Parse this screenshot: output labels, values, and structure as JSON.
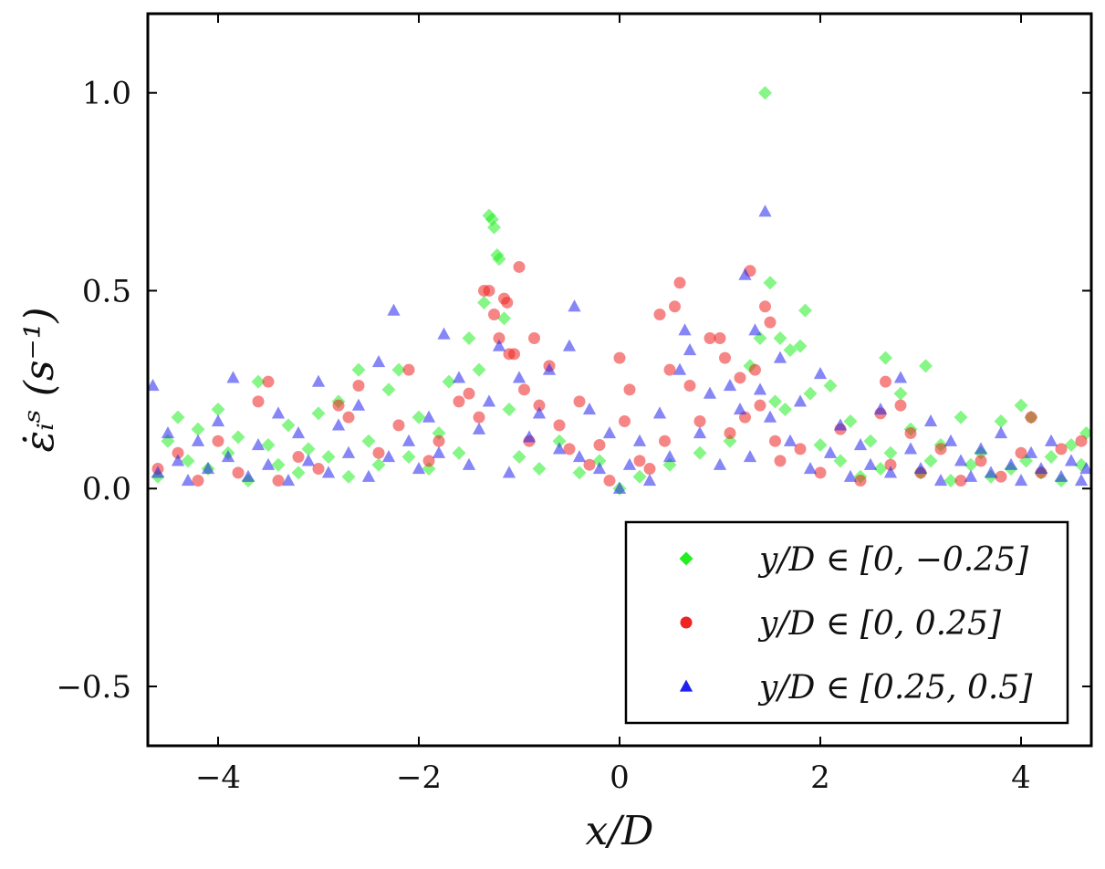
{
  "chart_data": {
    "type": "scatter",
    "title": "",
    "xlabel": "x/D",
    "ylabel": "ε̇ᵢˢ (s⁻¹)",
    "xlim": [
      -4.7,
      4.7
    ],
    "ylim": [
      -0.65,
      1.2
    ],
    "xticks": [
      -4,
      -2,
      0,
      2,
      4
    ],
    "xtick_labels": [
      "−4",
      "−2",
      "0",
      "2",
      "4"
    ],
    "yticks": [
      -0.5,
      0.0,
      0.5,
      1.0
    ],
    "ytick_labels": [
      "−0.5",
      "0.0",
      "0.5",
      "1.0"
    ],
    "grid": false,
    "legend_position": "lower-right",
    "series": [
      {
        "name": "y/D ∈ [0, −0.25]",
        "marker": "diamond",
        "color": "#22ee22",
        "points": [
          [
            -4.6,
            0.03
          ],
          [
            -4.5,
            0.12
          ],
          [
            -4.4,
            0.18
          ],
          [
            -4.3,
            0.07
          ],
          [
            -4.2,
            0.15
          ],
          [
            -4.1,
            0.05
          ],
          [
            -4.0,
            0.2
          ],
          [
            -3.9,
            0.09
          ],
          [
            -3.8,
            0.13
          ],
          [
            -3.7,
            0.02
          ],
          [
            -3.6,
            0.27
          ],
          [
            -3.5,
            0.11
          ],
          [
            -3.4,
            0.06
          ],
          [
            -3.3,
            0.16
          ],
          [
            -3.2,
            0.04
          ],
          [
            -3.1,
            0.1
          ],
          [
            -3.0,
            0.19
          ],
          [
            -2.9,
            0.08
          ],
          [
            -2.8,
            0.22
          ],
          [
            -2.7,
            0.03
          ],
          [
            -2.6,
            0.3
          ],
          [
            -2.5,
            0.12
          ],
          [
            -2.4,
            0.06
          ],
          [
            -2.3,
            0.25
          ],
          [
            -2.2,
            0.3
          ],
          [
            -2.1,
            0.08
          ],
          [
            -2.0,
            0.18
          ],
          [
            -1.9,
            0.05
          ],
          [
            -1.8,
            0.14
          ],
          [
            -1.7,
            0.27
          ],
          [
            -1.6,
            0.09
          ],
          [
            -1.5,
            0.38
          ],
          [
            -1.4,
            0.3
          ],
          [
            -1.35,
            0.47
          ],
          [
            -1.3,
            0.69
          ],
          [
            -1.27,
            0.68
          ],
          [
            -1.25,
            0.66
          ],
          [
            -1.22,
            0.59
          ],
          [
            -1.2,
            0.58
          ],
          [
            -1.15,
            0.43
          ],
          [
            -1.1,
            0.2
          ],
          [
            -1.0,
            0.08
          ],
          [
            -0.8,
            0.05
          ],
          [
            -0.6,
            0.12
          ],
          [
            -0.4,
            0.04
          ],
          [
            -0.2,
            0.07
          ],
          [
            0.0,
            0.0
          ],
          [
            0.2,
            0.03
          ],
          [
            0.5,
            0.06
          ],
          [
            0.8,
            0.09
          ],
          [
            1.1,
            0.12
          ],
          [
            1.3,
            0.31
          ],
          [
            1.4,
            0.38
          ],
          [
            1.45,
            1.0
          ],
          [
            1.5,
            0.52
          ],
          [
            1.55,
            0.22
          ],
          [
            1.6,
            0.38
          ],
          [
            1.65,
            0.2
          ],
          [
            1.7,
            0.35
          ],
          [
            1.8,
            0.36
          ],
          [
            1.85,
            0.45
          ],
          [
            1.9,
            0.24
          ],
          [
            2.0,
            0.11
          ],
          [
            2.1,
            0.26
          ],
          [
            2.2,
            0.07
          ],
          [
            2.3,
            0.17
          ],
          [
            2.4,
            0.03
          ],
          [
            2.5,
            0.12
          ],
          [
            2.6,
            0.05
          ],
          [
            2.65,
            0.33
          ],
          [
            2.7,
            0.09
          ],
          [
            2.8,
            0.24
          ],
          [
            2.9,
            0.15
          ],
          [
            3.0,
            0.04
          ],
          [
            3.05,
            0.31
          ],
          [
            3.1,
            0.07
          ],
          [
            3.2,
            0.11
          ],
          [
            3.3,
            0.02
          ],
          [
            3.4,
            0.18
          ],
          [
            3.5,
            0.06
          ],
          [
            3.6,
            0.09
          ],
          [
            3.7,
            0.03
          ],
          [
            3.8,
            0.17
          ],
          [
            3.9,
            0.05
          ],
          [
            4.0,
            0.21
          ],
          [
            4.05,
            0.07
          ],
          [
            4.1,
            0.18
          ],
          [
            4.2,
            0.04
          ],
          [
            4.3,
            0.08
          ],
          [
            4.4,
            0.02
          ],
          [
            4.5,
            0.11
          ],
          [
            4.6,
            0.06
          ],
          [
            4.65,
            0.14
          ]
        ]
      },
      {
        "name": "y/D ∈ [0, 0.25]",
        "marker": "circle",
        "color": "#ee2222",
        "points": [
          [
            -4.6,
            0.05
          ],
          [
            -4.4,
            0.09
          ],
          [
            -4.2,
            0.02
          ],
          [
            -4.0,
            0.12
          ],
          [
            -3.8,
            0.04
          ],
          [
            -3.6,
            0.22
          ],
          [
            -3.5,
            0.27
          ],
          [
            -3.4,
            0.02
          ],
          [
            -3.2,
            0.08
          ],
          [
            -3.0,
            0.05
          ],
          [
            -2.8,
            0.21
          ],
          [
            -2.7,
            0.18
          ],
          [
            -2.6,
            0.26
          ],
          [
            -2.4,
            0.09
          ],
          [
            -2.2,
            0.16
          ],
          [
            -2.1,
            0.3
          ],
          [
            -1.9,
            0.07
          ],
          [
            -1.8,
            0.12
          ],
          [
            -1.6,
            0.22
          ],
          [
            -1.5,
            0.24
          ],
          [
            -1.4,
            0.18
          ],
          [
            -1.35,
            0.5
          ],
          [
            -1.3,
            0.5
          ],
          [
            -1.25,
            0.44
          ],
          [
            -1.2,
            0.38
          ],
          [
            -1.15,
            0.48
          ],
          [
            -1.12,
            0.47
          ],
          [
            -1.1,
            0.34
          ],
          [
            -1.05,
            0.34
          ],
          [
            -1.0,
            0.56
          ],
          [
            -0.95,
            0.25
          ],
          [
            -0.9,
            0.12
          ],
          [
            -0.85,
            0.38
          ],
          [
            -0.8,
            0.21
          ],
          [
            -0.7,
            0.31
          ],
          [
            -0.6,
            0.16
          ],
          [
            -0.5,
            0.1
          ],
          [
            -0.4,
            0.22
          ],
          [
            -0.3,
            0.06
          ],
          [
            -0.2,
            0.11
          ],
          [
            -0.1,
            0.02
          ],
          [
            0.0,
            0.33
          ],
          [
            0.05,
            0.17
          ],
          [
            0.1,
            0.25
          ],
          [
            0.2,
            0.07
          ],
          [
            0.3,
            0.05
          ],
          [
            0.4,
            0.44
          ],
          [
            0.45,
            0.12
          ],
          [
            0.5,
            0.3
          ],
          [
            0.55,
            0.46
          ],
          [
            0.6,
            0.52
          ],
          [
            0.7,
            0.26
          ],
          [
            0.8,
            0.17
          ],
          [
            0.9,
            0.38
          ],
          [
            1.0,
            0.38
          ],
          [
            1.05,
            0.33
          ],
          [
            1.1,
            0.14
          ],
          [
            1.2,
            0.28
          ],
          [
            1.25,
            0.18
          ],
          [
            1.3,
            0.55
          ],
          [
            1.35,
            0.3
          ],
          [
            1.4,
            0.21
          ],
          [
            1.45,
            0.46
          ],
          [
            1.5,
            0.42
          ],
          [
            1.55,
            0.12
          ],
          [
            1.6,
            0.07
          ],
          [
            1.8,
            0.1
          ],
          [
            2.0,
            0.04
          ],
          [
            2.2,
            0.15
          ],
          [
            2.4,
            0.02
          ],
          [
            2.6,
            0.19
          ],
          [
            2.65,
            0.27
          ],
          [
            2.7,
            0.06
          ],
          [
            2.8,
            0.21
          ],
          [
            2.9,
            0.14
          ],
          [
            3.0,
            0.04
          ],
          [
            3.2,
            0.1
          ],
          [
            3.4,
            0.02
          ],
          [
            3.6,
            0.07
          ],
          [
            3.8,
            0.03
          ],
          [
            4.0,
            0.09
          ],
          [
            4.1,
            0.18
          ],
          [
            4.2,
            0.04
          ],
          [
            4.4,
            0.1
          ],
          [
            4.6,
            0.12
          ]
        ]
      },
      {
        "name": "y/D ∈ [0.25, 0.5]",
        "marker": "triangle",
        "color": "#2222ee",
        "points": [
          [
            -4.65,
            0.26
          ],
          [
            -4.6,
            0.04
          ],
          [
            -4.5,
            0.14
          ],
          [
            -4.4,
            0.07
          ],
          [
            -4.3,
            0.02
          ],
          [
            -4.2,
            0.12
          ],
          [
            -4.1,
            0.05
          ],
          [
            -4.0,
            0.17
          ],
          [
            -3.9,
            0.08
          ],
          [
            -3.85,
            0.28
          ],
          [
            -3.7,
            0.03
          ],
          [
            -3.6,
            0.11
          ],
          [
            -3.5,
            0.06
          ],
          [
            -3.4,
            0.19
          ],
          [
            -3.3,
            0.02
          ],
          [
            -3.2,
            0.14
          ],
          [
            -3.1,
            0.07
          ],
          [
            -3.0,
            0.27
          ],
          [
            -2.9,
            0.04
          ],
          [
            -2.8,
            0.16
          ],
          [
            -2.7,
            0.09
          ],
          [
            -2.6,
            0.21
          ],
          [
            -2.5,
            0.03
          ],
          [
            -2.4,
            0.32
          ],
          [
            -2.3,
            0.08
          ],
          [
            -2.25,
            0.45
          ],
          [
            -2.1,
            0.12
          ],
          [
            -2.0,
            0.05
          ],
          [
            -1.9,
            0.18
          ],
          [
            -1.8,
            0.09
          ],
          [
            -1.75,
            0.39
          ],
          [
            -1.6,
            0.28
          ],
          [
            -1.5,
            0.06
          ],
          [
            -1.4,
            0.15
          ],
          [
            -1.3,
            0.22
          ],
          [
            -1.2,
            0.36
          ],
          [
            -1.1,
            0.04
          ],
          [
            -1.0,
            0.28
          ],
          [
            -0.9,
            0.13
          ],
          [
            -0.8,
            0.19
          ],
          [
            -0.7,
            0.3
          ],
          [
            -0.6,
            0.1
          ],
          [
            -0.5,
            0.36
          ],
          [
            -0.45,
            0.46
          ],
          [
            -0.4,
            0.08
          ],
          [
            -0.3,
            0.2
          ],
          [
            -0.2,
            0.05
          ],
          [
            -0.1,
            0.14
          ],
          [
            0.0,
            0.0
          ],
          [
            0.1,
            0.06
          ],
          [
            0.2,
            0.12
          ],
          [
            0.3,
            0.02
          ],
          [
            0.4,
            0.19
          ],
          [
            0.5,
            0.08
          ],
          [
            0.6,
            0.3
          ],
          [
            0.65,
            0.4
          ],
          [
            0.7,
            0.35
          ],
          [
            0.8,
            0.14
          ],
          [
            0.9,
            0.24
          ],
          [
            1.0,
            0.06
          ],
          [
            1.1,
            0.26
          ],
          [
            1.2,
            0.2
          ],
          [
            1.25,
            0.54
          ],
          [
            1.3,
            0.08
          ],
          [
            1.35,
            0.4
          ],
          [
            1.4,
            0.25
          ],
          [
            1.45,
            0.7
          ],
          [
            1.5,
            0.18
          ],
          [
            1.6,
            0.33
          ],
          [
            1.7,
            0.12
          ],
          [
            1.8,
            0.22
          ],
          [
            1.9,
            0.05
          ],
          [
            2.0,
            0.29
          ],
          [
            2.1,
            0.09
          ],
          [
            2.2,
            0.16
          ],
          [
            2.3,
            0.03
          ],
          [
            2.4,
            0.11
          ],
          [
            2.5,
            0.06
          ],
          [
            2.6,
            0.2
          ],
          [
            2.7,
            0.04
          ],
          [
            2.8,
            0.28
          ],
          [
            2.9,
            0.1
          ],
          [
            3.0,
            0.05
          ],
          [
            3.1,
            0.17
          ],
          [
            3.2,
            0.02
          ],
          [
            3.3,
            0.12
          ],
          [
            3.4,
            0.07
          ],
          [
            3.5,
            0.03
          ],
          [
            3.6,
            0.1
          ],
          [
            3.7,
            0.04
          ],
          [
            3.8,
            0.14
          ],
          [
            3.9,
            0.06
          ],
          [
            4.0,
            0.02
          ],
          [
            4.1,
            0.09
          ],
          [
            4.2,
            0.05
          ],
          [
            4.3,
            0.12
          ],
          [
            4.4,
            0.03
          ],
          [
            4.5,
            0.07
          ],
          [
            4.6,
            0.02
          ],
          [
            4.65,
            0.05
          ]
        ]
      }
    ]
  }
}
